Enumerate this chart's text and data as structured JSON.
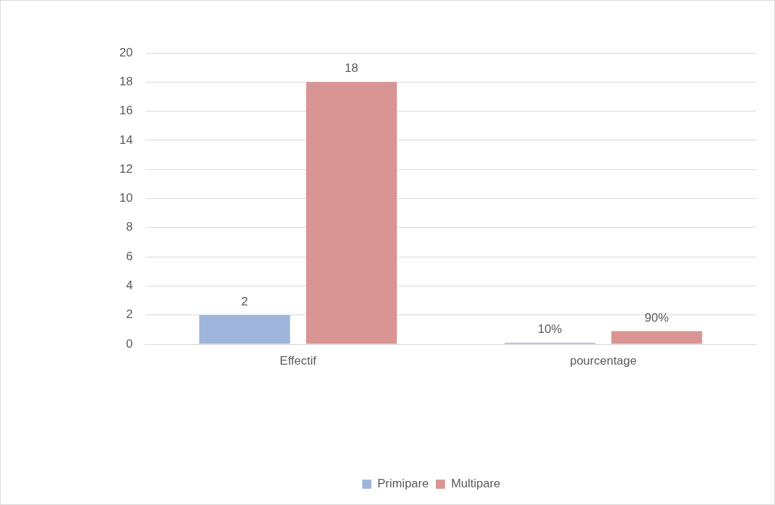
{
  "chart_data": {
    "type": "bar",
    "categories": [
      "Effectif",
      "pourcentage"
    ],
    "series": [
      {
        "name": "Primipare",
        "color": "#9fb4da",
        "values": [
          2,
          0.1
        ],
        "value_labels": [
          "2",
          "10%"
        ]
      },
      {
        "name": "Multipare",
        "color": "#d99594",
        "values": [
          18,
          0.9
        ],
        "value_labels": [
          "18",
          "90%"
        ]
      }
    ],
    "ylim": [
      0,
      20
    ],
    "yticks": [
      0,
      2,
      4,
      6,
      8,
      10,
      12,
      14,
      16,
      18,
      20
    ],
    "grid": "y",
    "legend": "bottom"
  }
}
